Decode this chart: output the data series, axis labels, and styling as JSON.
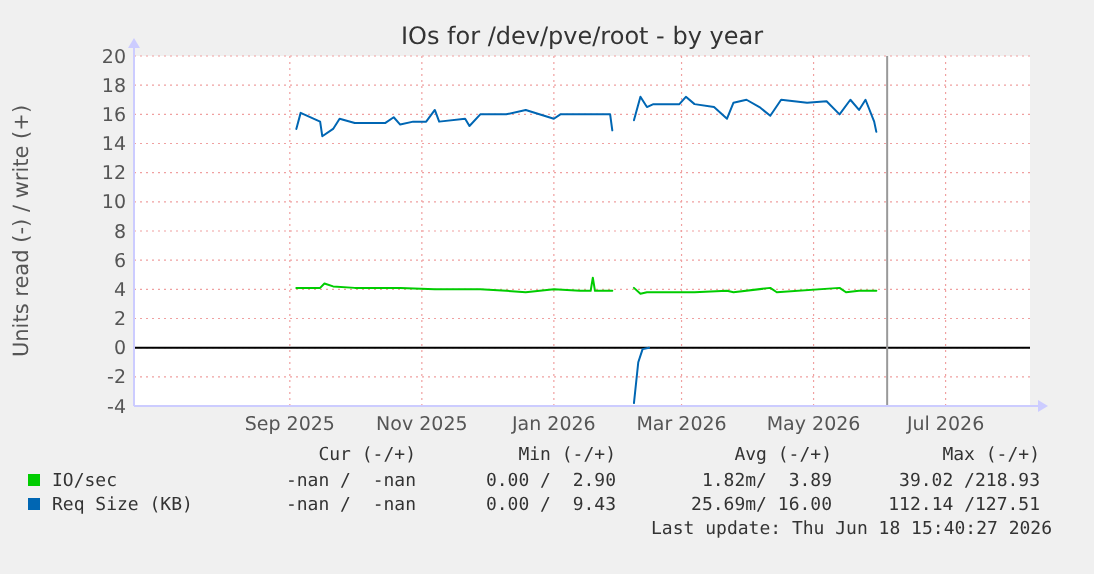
{
  "chart_data": {
    "type": "line",
    "title": "IOs for /dev/pve/root - by year",
    "ylabel": "Units read (-) / write (+)",
    "xlim": [
      "2025-07-05",
      "2026-08-23"
    ],
    "xticks": [
      {
        "value": "2025-09-15",
        "label": "Sep 2025"
      },
      {
        "value": "2025-11-15",
        "label": "Nov 2025"
      },
      {
        "value": "2026-01-15",
        "label": "Jan 2026"
      },
      {
        "value": "2026-03-15",
        "label": "Mar 2026"
      },
      {
        "value": "2026-05-15",
        "label": "May 2026"
      },
      {
        "value": "2026-07-15",
        "label": "Jul 2026"
      }
    ],
    "ylim": [
      -4,
      20
    ],
    "yticks": [
      -4,
      -2,
      0,
      2,
      4,
      6,
      8,
      10,
      12,
      14,
      16,
      18,
      20
    ],
    "grid": true,
    "legend": "bottom",
    "ref_lines": [
      {
        "axis": "y",
        "value": 0,
        "color": "#000000"
      },
      {
        "axis": "x",
        "value": "2026-06-18",
        "color": "#999999"
      }
    ],
    "series": [
      {
        "name": "IO/sec",
        "color": "#00cc00",
        "x": [
          "2025-09-18",
          "2025-09-29",
          "2025-10-01",
          "2025-10-05",
          "2025-10-15",
          "2025-11-05",
          "2025-11-21",
          "2025-12-12",
          "2025-12-24",
          "2026-01-02",
          "2026-01-15",
          "2026-01-27",
          "2026-02-01",
          "2026-02-02",
          "2026-02-03",
          "2026-02-11",
          "2026-02-16",
          "2026-02-21",
          "2026-02-24",
          "2026-02-27",
          "2026-03-21",
          "2026-04-05",
          "2026-04-08",
          "2026-04-25",
          "2026-04-28",
          "2026-05-27",
          "2026-05-30",
          "2026-06-05",
          "2026-06-13"
        ],
        "values": [
          4.1,
          4.1,
          4.4,
          4.2,
          4.1,
          4.1,
          4.0,
          4.0,
          3.9,
          3.8,
          4.0,
          3.9,
          3.9,
          4.8,
          3.9,
          3.9,
          null,
          4.1,
          3.7,
          3.8,
          3.8,
          3.9,
          3.8,
          4.1,
          3.8,
          4.1,
          3.8,
          3.9,
          3.9
        ]
      },
      {
        "name": "Req Size (KB)",
        "color": "#0066b3",
        "x": [
          "2025-09-18",
          "2025-09-20",
          "2025-09-29",
          "2025-09-30",
          "2025-10-05",
          "2025-10-08",
          "2025-10-15",
          "2025-10-29",
          "2025-11-02",
          "2025-11-05",
          "2025-11-11",
          "2025-11-17",
          "2025-11-21",
          "2025-11-23",
          "2025-12-05",
          "2025-12-07",
          "2025-12-12",
          "2025-12-24",
          "2026-01-02",
          "2026-01-15",
          "2026-01-18",
          "2026-01-27",
          "2026-02-08",
          "2026-02-10",
          "2026-02-11",
          "2026-02-16",
          "2026-02-21",
          "2026-02-24",
          "2026-02-27",
          "2026-03-02",
          "2026-03-14",
          "2026-03-17",
          "2026-03-21",
          "2026-03-30",
          "2026-04-05",
          "2026-04-08",
          "2026-04-14",
          "2026-04-20",
          "2026-04-25",
          "2026-04-30",
          "2026-05-12",
          "2026-05-21",
          "2026-05-27",
          "2026-06-01",
          "2026-06-05",
          "2026-06-08",
          "2026-06-12",
          "2026-06-13"
        ],
        "values": [
          15.0,
          16.1,
          15.5,
          14.5,
          15.0,
          15.7,
          15.4,
          15.4,
          15.8,
          15.3,
          15.5,
          15.5,
          16.3,
          15.5,
          15.7,
          15.2,
          16.0,
          16.0,
          16.3,
          15.7,
          16.0,
          16.0,
          16.0,
          16.0,
          14.9,
          null,
          15.6,
          17.2,
          16.5,
          16.7,
          16.7,
          17.2,
          16.7,
          16.5,
          15.7,
          16.8,
          17.0,
          16.5,
          15.9,
          17.0,
          16.8,
          16.9,
          16.0,
          17.0,
          16.3,
          17.0,
          15.5,
          14.8
        ]
      },
      {
        "color": "#0066b3",
        "x": [
          "2026-02-21",
          "2026-02-23",
          "2026-02-25",
          "2026-02-28"
        ],
        "values": [
          -3.8,
          -1.0,
          -0.1,
          0
        ]
      }
    ],
    "annotations": [
      "Cur (-/+)",
      "Min (-/+)",
      "Avg (-/+)",
      "Max (-/+)",
      "-nan /  -nan",
      "0.00 /  2.90",
      "1.82m/  3.89",
      "39.02 /218.93",
      "-nan /  -nan",
      "0.00 /  9.43",
      "25.69m/ 16.00",
      "112.14 /127.51",
      "Last update: Thu Jun 18 15:40:27 2026"
    ]
  }
}
